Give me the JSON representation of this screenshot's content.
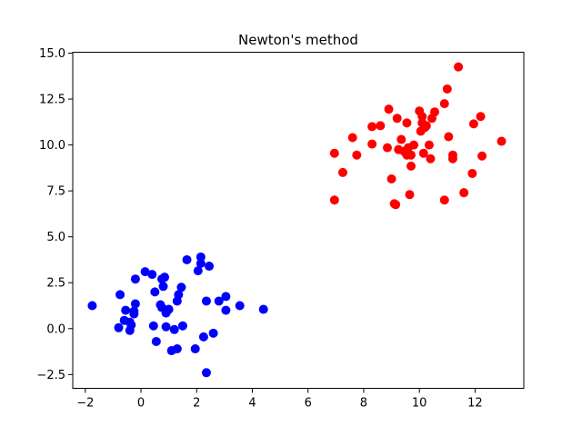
{
  "chart_data": {
    "type": "scatter",
    "title": "Newton's method",
    "xlabel": "",
    "ylabel": "",
    "xlim": [
      -2.45,
      13.75
    ],
    "ylim": [
      -3.25,
      15.05
    ],
    "xticks": [
      -2,
      0,
      2,
      4,
      6,
      8,
      10,
      12
    ],
    "xtick_labels": [
      "−2",
      "0",
      "2",
      "4",
      "6",
      "8",
      "10",
      "12"
    ],
    "yticks": [
      -2.5,
      0.0,
      2.5,
      5.0,
      7.5,
      10.0,
      12.5,
      15.0
    ],
    "ytick_labels": [
      "−2.5",
      "0.0",
      "2.5",
      "5.0",
      "7.5",
      "10.0",
      "12.5",
      "15.0"
    ],
    "grid": false,
    "series": [
      {
        "color": "#0000ff",
        "points": [
          [
            -1.75,
            1.25
          ],
          [
            -0.8,
            0.05
          ],
          [
            -0.75,
            1.85
          ],
          [
            -0.6,
            0.45
          ],
          [
            -0.55,
            1.0
          ],
          [
            -0.4,
            0.35
          ],
          [
            -0.4,
            -0.1
          ],
          [
            -0.35,
            0.2
          ],
          [
            -0.25,
            0.95
          ],
          [
            -0.25,
            0.8
          ],
          [
            -0.2,
            1.35
          ],
          [
            -0.2,
            2.7
          ],
          [
            0.15,
            3.1
          ],
          [
            0.4,
            2.95
          ],
          [
            0.45,
            0.15
          ],
          [
            0.5,
            2.0
          ],
          [
            0.55,
            -0.7
          ],
          [
            0.7,
            1.3
          ],
          [
            0.75,
            1.15
          ],
          [
            0.75,
            2.7
          ],
          [
            0.8,
            2.3
          ],
          [
            0.85,
            2.8
          ],
          [
            0.9,
            0.1
          ],
          [
            0.9,
            0.85
          ],
          [
            1.0,
            1.05
          ],
          [
            1.1,
            -1.2
          ],
          [
            1.2,
            -0.05
          ],
          [
            1.3,
            1.5
          ],
          [
            1.3,
            -1.1
          ],
          [
            1.35,
            1.85
          ],
          [
            1.45,
            2.25
          ],
          [
            1.5,
            0.15
          ],
          [
            1.65,
            3.75
          ],
          [
            1.95,
            -1.1
          ],
          [
            2.05,
            3.15
          ],
          [
            2.15,
            3.55
          ],
          [
            2.15,
            3.9
          ],
          [
            2.25,
            -0.45
          ],
          [
            2.35,
            1.5
          ],
          [
            2.35,
            -2.4
          ],
          [
            2.45,
            3.4
          ],
          [
            2.6,
            -0.25
          ],
          [
            2.8,
            1.5
          ],
          [
            3.05,
            1.0
          ],
          [
            3.05,
            1.75
          ],
          [
            3.55,
            1.25
          ],
          [
            4.4,
            1.05
          ]
        ]
      },
      {
        "color": "#ff0000",
        "points": [
          [
            6.95,
            7.0
          ],
          [
            6.95,
            9.55
          ],
          [
            7.25,
            8.5
          ],
          [
            7.6,
            10.4
          ],
          [
            7.75,
            9.45
          ],
          [
            8.3,
            11.0
          ],
          [
            8.3,
            10.05
          ],
          [
            8.6,
            11.05
          ],
          [
            8.85,
            9.85
          ],
          [
            8.9,
            11.95
          ],
          [
            9.0,
            8.15
          ],
          [
            9.1,
            6.8
          ],
          [
            9.15,
            6.75
          ],
          [
            9.2,
            11.45
          ],
          [
            9.25,
            9.75
          ],
          [
            9.35,
            10.3
          ],
          [
            9.45,
            9.65
          ],
          [
            9.55,
            11.2
          ],
          [
            9.55,
            9.45
          ],
          [
            9.6,
            9.85
          ],
          [
            9.65,
            7.3
          ],
          [
            9.7,
            8.85
          ],
          [
            9.7,
            9.45
          ],
          [
            9.8,
            10.0
          ],
          [
            10.0,
            11.85
          ],
          [
            10.05,
            10.75
          ],
          [
            10.1,
            11.55
          ],
          [
            10.1,
            11.2
          ],
          [
            10.15,
            9.55
          ],
          [
            10.2,
            10.95
          ],
          [
            10.25,
            11.05
          ],
          [
            10.35,
            10.0
          ],
          [
            10.4,
            9.25
          ],
          [
            10.45,
            11.45
          ],
          [
            10.55,
            11.8
          ],
          [
            10.9,
            12.25
          ],
          [
            10.9,
            7.0
          ],
          [
            11.0,
            13.05
          ],
          [
            11.05,
            10.45
          ],
          [
            11.2,
            9.45
          ],
          [
            11.2,
            9.25
          ],
          [
            11.4,
            14.25
          ],
          [
            11.6,
            7.4
          ],
          [
            11.9,
            8.45
          ],
          [
            11.95,
            11.15
          ],
          [
            12.2,
            11.55
          ],
          [
            12.25,
            9.4
          ],
          [
            12.95,
            10.2
          ]
        ]
      }
    ]
  }
}
